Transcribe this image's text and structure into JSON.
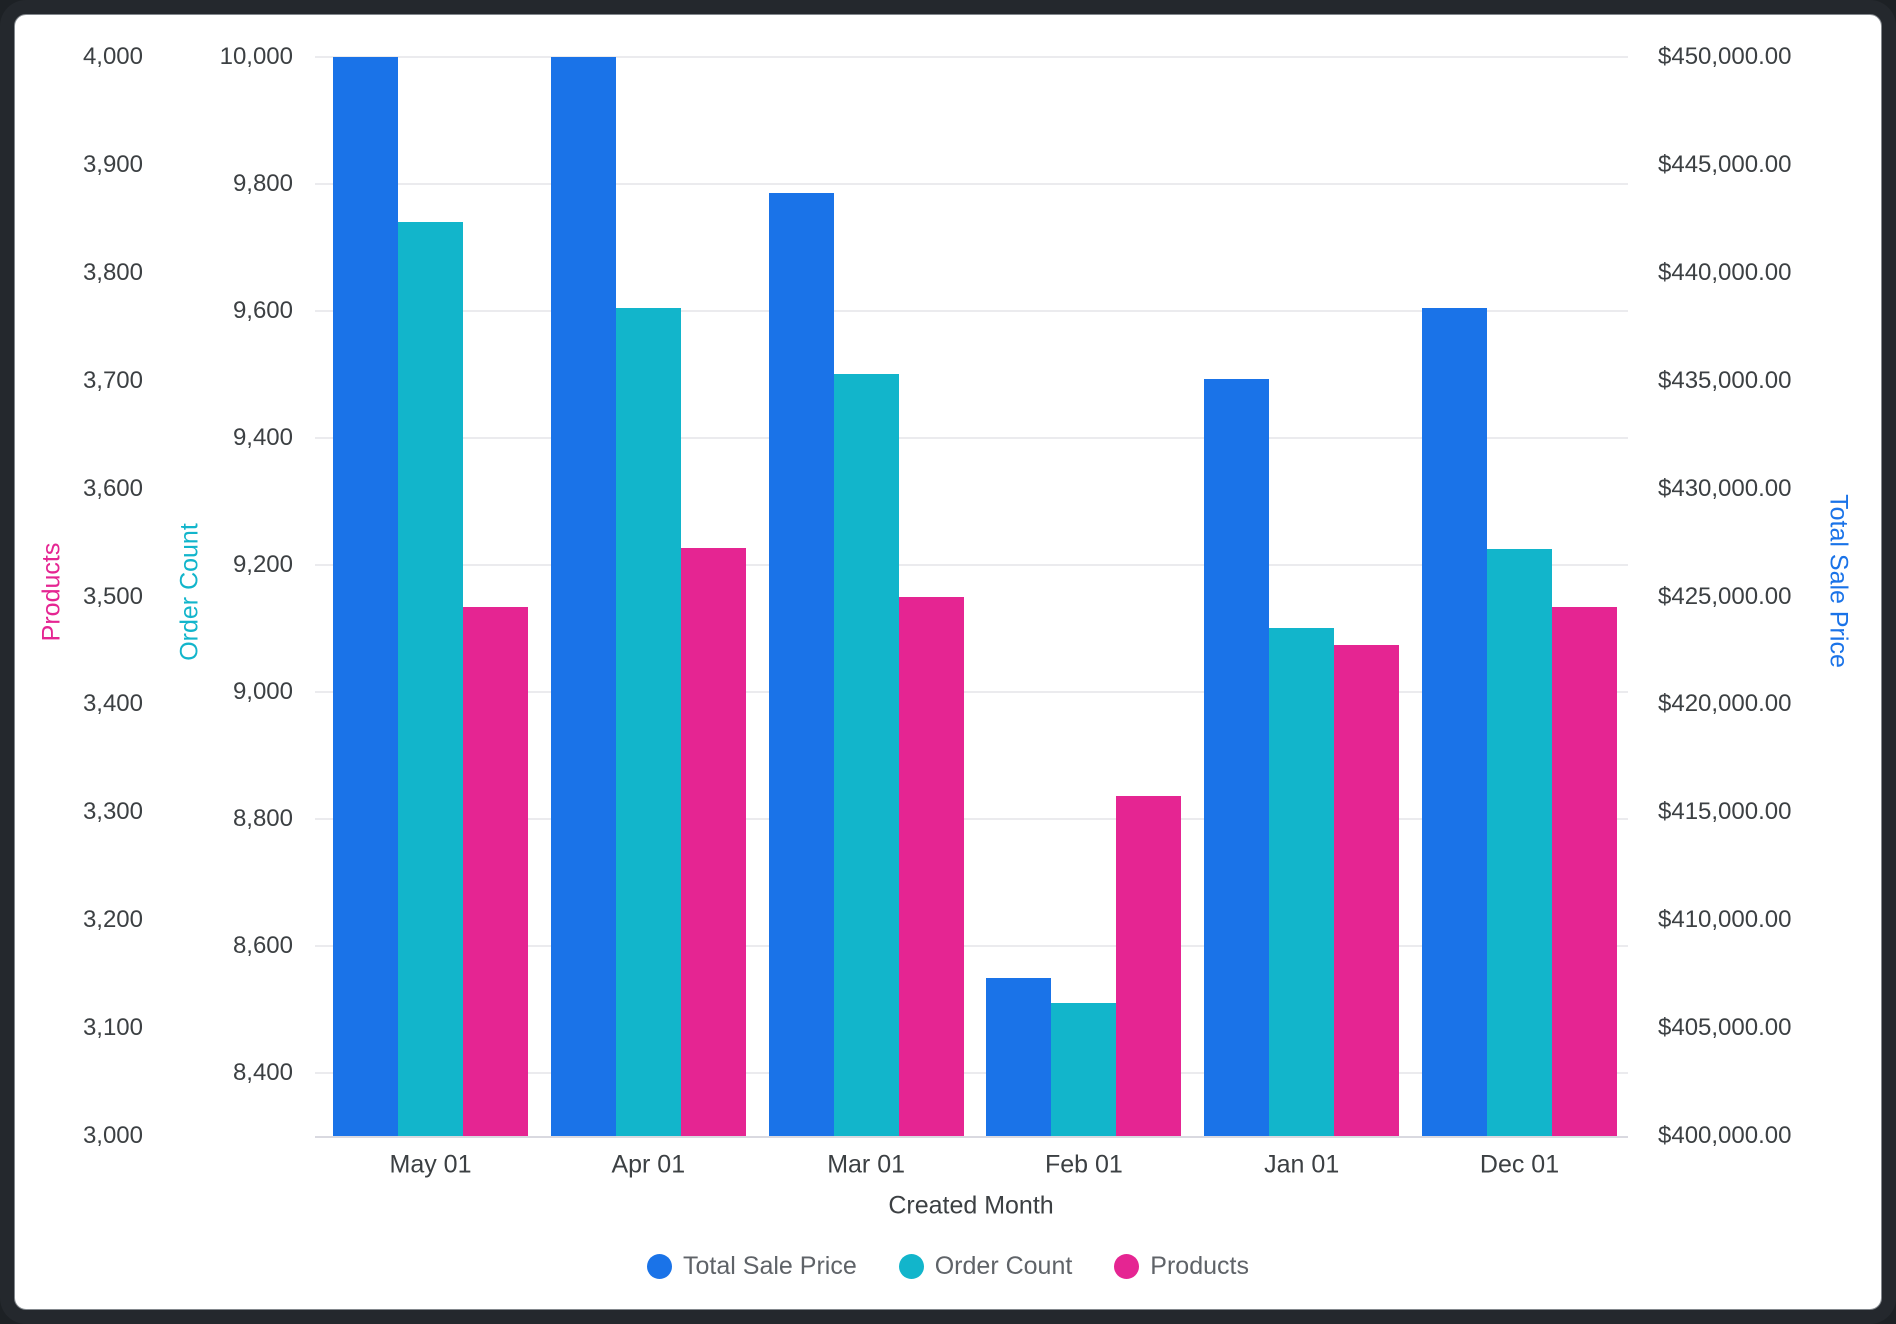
{
  "frame": {
    "border_color": "#24282d",
    "card_color": "#ffffff"
  },
  "chart_data": {
    "type": "bar",
    "title": "",
    "categories": [
      "May 01",
      "Apr 01",
      "Mar 01",
      "Feb 01",
      "Jan 01",
      "Dec 01"
    ],
    "series": [
      {
        "name": "Total Sale Price",
        "axis": "sale",
        "color": "#1a73e8",
        "values": [
          450000,
          450000,
          443700,
          407300,
          435100,
          438350
        ]
      },
      {
        "name": "Order Count",
        "axis": "orders",
        "color": "#12b5cb",
        "values": [
          9740,
          9605,
          9500,
          8510,
          9100,
          9225
        ]
      },
      {
        "name": "Products",
        "axis": "products",
        "color": "#e52592",
        "values": [
          3490,
          3545,
          3500,
          3315,
          3455,
          3490
        ]
      }
    ],
    "axes": {
      "products": {
        "title": "Products",
        "color": "#e52592",
        "min": 3000,
        "max": 4000,
        "ticks": [
          {
            "value": 4000,
            "label": "4,000"
          },
          {
            "value": 3900,
            "label": "3,900"
          },
          {
            "value": 3800,
            "label": "3,800"
          },
          {
            "value": 3700,
            "label": "3,700"
          },
          {
            "value": 3600,
            "label": "3,600"
          },
          {
            "value": 3500,
            "label": "3,500"
          },
          {
            "value": 3400,
            "label": "3,400"
          },
          {
            "value": 3300,
            "label": "3,300"
          },
          {
            "value": 3200,
            "label": "3,200"
          },
          {
            "value": 3100,
            "label": "3,100"
          },
          {
            "value": 3000,
            "label": "3,000"
          }
        ]
      },
      "orders": {
        "title": "Order Count",
        "color": "#12b5cb",
        "min": 8300,
        "max": 10000,
        "gridlines": true,
        "ticks": [
          {
            "value": 10000,
            "label": "10,000"
          },
          {
            "value": 9800,
            "label": "9,800"
          },
          {
            "value": 9600,
            "label": "9,600"
          },
          {
            "value": 9400,
            "label": "9,400"
          },
          {
            "value": 9200,
            "label": "9,200"
          },
          {
            "value": 9000,
            "label": "9,000"
          },
          {
            "value": 8800,
            "label": "8,800"
          },
          {
            "value": 8600,
            "label": "8,600"
          },
          {
            "value": 8400,
            "label": "8,400"
          }
        ]
      },
      "sale": {
        "title": "Total Sale Price",
        "color": "#1a73e8",
        "min": 400000,
        "max": 450000,
        "ticks": [
          {
            "value": 450000,
            "label": "$450,000.00"
          },
          {
            "value": 445000,
            "label": "$445,000.00"
          },
          {
            "value": 440000,
            "label": "$440,000.00"
          },
          {
            "value": 435000,
            "label": "$435,000.00"
          },
          {
            "value": 430000,
            "label": "$430,000.00"
          },
          {
            "value": 425000,
            "label": "$425,000.00"
          },
          {
            "value": 420000,
            "label": "$420,000.00"
          },
          {
            "value": 415000,
            "label": "$415,000.00"
          },
          {
            "value": 410000,
            "label": "$410,000.00"
          },
          {
            "value": 405000,
            "label": "$405,000.00"
          },
          {
            "value": 400000,
            "label": "$400,000.00"
          }
        ]
      },
      "x": {
        "title": "Created Month"
      }
    },
    "legend": [
      {
        "label": "Total Sale Price",
        "color": "#1a73e8"
      },
      {
        "label": "Order Count",
        "color": "#12b5cb"
      },
      {
        "label": "Products",
        "color": "#e52592"
      }
    ],
    "legend_position": "bottom",
    "grid": "horizontal"
  }
}
